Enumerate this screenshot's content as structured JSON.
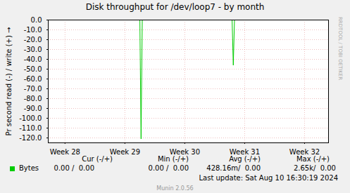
{
  "chart_data": {
    "type": "line",
    "title": "Disk throughput for /dev/loop7 - by month",
    "y_label": "Pr second read (-) / write (+)",
    "x": [
      27.72,
      29.25,
      29.27,
      29.29,
      30.79,
      30.81,
      30.83,
      32.4
    ],
    "series": [
      {
        "name": "Bytes",
        "color": "#00cc00",
        "values": [
          0,
          0,
          -121,
          0,
          0,
          -46,
          0,
          0
        ]
      }
    ],
    "xlim": [
      27.72,
      32.4
    ],
    "xticks": [
      {
        "value": 28,
        "label": "Week 28"
      },
      {
        "value": 29,
        "label": "Week 29"
      },
      {
        "value": 30,
        "label": "Week 30"
      },
      {
        "value": 31,
        "label": "Week 31"
      },
      {
        "value": 32,
        "label": "Week 32"
      }
    ],
    "ylim": [
      -125,
      0
    ],
    "yticks": [
      {
        "value": 0,
        "label": "0.0"
      },
      {
        "value": -10,
        "label": "-10.0"
      },
      {
        "value": -20,
        "label": "-20.0"
      },
      {
        "value": -30,
        "label": "-30.0"
      },
      {
        "value": -40,
        "label": "-40.0"
      },
      {
        "value": -50,
        "label": "-50.0"
      },
      {
        "value": -60,
        "label": "-60.0"
      },
      {
        "value": -70,
        "label": "-70.0"
      },
      {
        "value": -80,
        "label": "-80.0"
      },
      {
        "value": -90,
        "label": "-90.0"
      },
      {
        "value": -100,
        "label": "-100.0"
      },
      {
        "value": -110,
        "label": "-110.0"
      },
      {
        "value": -120,
        "label": "-120.0"
      }
    ],
    "grid": true,
    "legend_table": {
      "columns": [
        "Cur (-/+)",
        "Min (-/+)",
        "Avg (-/+)",
        "Max (-/+)"
      ],
      "rows": [
        {
          "name": "Bytes",
          "cells": [
            "0.00 /  0.00",
            "0.00 /  0.00",
            "428.16m/  0.00",
            "2.65k/  0.00"
          ]
        }
      ]
    },
    "last_update": "Last update: Sat Aug 10 16:30:19 2024",
    "footer": "Munin 2.0.56",
    "watermark": "RRDTOOL / TOBI OETIKER"
  }
}
